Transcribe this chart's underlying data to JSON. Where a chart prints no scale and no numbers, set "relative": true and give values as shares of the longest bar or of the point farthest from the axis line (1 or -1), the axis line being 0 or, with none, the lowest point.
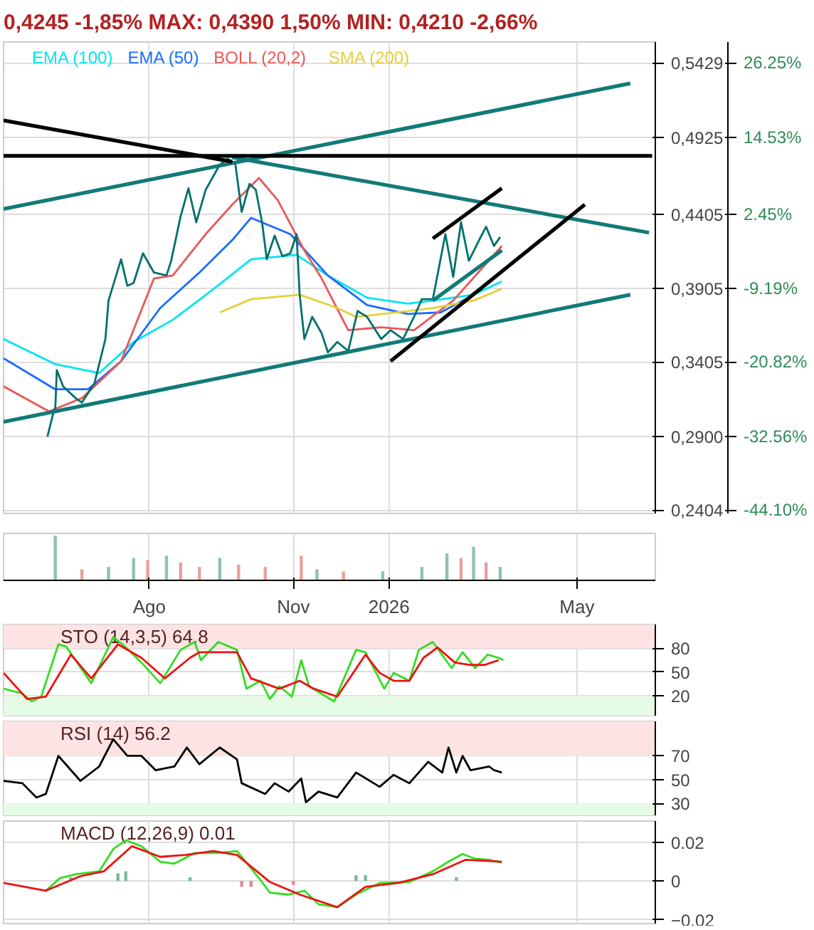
{
  "chart_data": [
    {
      "type": "line",
      "title": "0,4245 -1,85%  MAX: 0,4390 1,50%  MIN: 0,4210 -2,66%",
      "xlim": [
        "2025-04-30",
        "2026-06-20"
      ],
      "xticks": [
        {
          "value": "2025-08-01",
          "label": null
        },
        {
          "value": "2025-11-01",
          "label": null
        },
        {
          "value": "2026-01-01",
          "label": null
        },
        {
          "value": "2026-05-01",
          "label": null
        }
      ],
      "ylim": [
        0.238,
        0.557
      ],
      "yticks": [
        {
          "value": 0.5429,
          "label": "0,5429"
        },
        {
          "value": 0.4925,
          "label": "0,4925"
        },
        {
          "value": 0.4405,
          "label": "0,4405"
        },
        {
          "value": 0.3905,
          "label": "0,3905"
        },
        {
          "value": 0.3405,
          "label": "0,3405"
        },
        {
          "value": 0.29,
          "label": "0,2900"
        },
        {
          "value": 0.2404,
          "label": "0,2404"
        }
      ],
      "y2lim": [
        -44.65,
        29.53
      ],
      "y2ticks": [
        {
          "value": 26.25,
          "label": "26.25%"
        },
        {
          "value": 14.53,
          "label": "14.53%"
        },
        {
          "value": 2.45,
          "label": "2.45%"
        },
        {
          "value": -9.19,
          "label": "-9.19%"
        },
        {
          "value": -20.82,
          "label": "-20.82%"
        },
        {
          "value": -32.56,
          "label": "-32.56%"
        },
        {
          "value": -44.1,
          "label": "-44.10%"
        }
      ],
      "tick_labels": "y",
      "grid": true,
      "legend": "top left",
      "series": [
        {
          "name": "EMA (100)",
          "color": "#00e5ee",
          "x": [
            "2025-04-30",
            "2025-06-02",
            "2025-06-30",
            "2025-07-22",
            "2025-08-16",
            "2025-09-10",
            "2025-10-05",
            "2025-11-03",
            "2025-11-23",
            "2025-12-18",
            "2026-01-13",
            "2026-01-29",
            "2026-02-24",
            "2026-03-14"
          ],
          "values": [
            0.356,
            0.339,
            0.333,
            0.354,
            0.369,
            0.389,
            0.41,
            0.413,
            0.399,
            0.384,
            0.38,
            0.382,
            0.386,
            0.395
          ]
        },
        {
          "name": "EMA (50)",
          "color": "#1a6bff",
          "x": [
            "2025-04-30",
            "2025-06-02",
            "2025-06-23",
            "2025-07-14",
            "2025-08-08",
            "2025-09-02",
            "2025-09-23",
            "2025-10-05",
            "2025-10-30",
            "2025-11-23",
            "2025-12-18",
            "2026-01-13",
            "2026-02-03",
            "2026-02-24",
            "2026-03-14"
          ],
          "values": [
            0.343,
            0.322,
            0.322,
            0.341,
            0.377,
            0.401,
            0.423,
            0.438,
            0.427,
            0.399,
            0.379,
            0.373,
            0.374,
            0.386,
            0.401
          ]
        },
        {
          "name": "BOLL (20,2)",
          "color": "#e85858",
          "x": [
            "2025-04-30",
            "2025-05-29",
            "2025-06-19",
            "2025-07-14",
            "2025-08-04",
            "2025-08-16",
            "2025-09-06",
            "2025-09-23",
            "2025-10-10",
            "2025-10-22",
            "2025-11-08",
            "2025-11-19",
            "2025-12-06",
            "2025-12-27",
            "2026-01-17",
            "2026-02-11",
            "2026-03-04",
            "2026-03-14"
          ],
          "values": [
            0.324,
            0.307,
            0.316,
            0.341,
            0.397,
            0.399,
            0.427,
            0.447,
            0.465,
            0.45,
            0.416,
            0.397,
            0.362,
            0.364,
            0.362,
            0.382,
            0.407,
            0.419
          ]
        },
        {
          "name": "SMA (200)",
          "color": "#e6cf3a",
          "x": [
            "2025-09-15",
            "2025-10-05",
            "2025-11-05",
            "2025-11-29",
            "2025-12-11",
            "2026-01-05",
            "2026-01-29",
            "2026-02-24",
            "2026-03-14"
          ],
          "values": [
            0.374,
            0.383,
            0.386,
            0.377,
            0.371,
            0.374,
            0.377,
            0.382,
            0.39
          ]
        },
        {
          "color": "#00706b",
          "x": [
            "2025-05-28",
            "2025-06-01",
            "2025-06-02",
            "2025-06-03",
            "2025-06-07",
            "2025-06-15",
            "2025-06-19",
            "2025-06-27",
            "2025-07-04",
            "2025-07-06",
            "2025-07-14",
            "2025-07-18",
            "2025-07-22",
            "2025-07-28",
            "2025-08-04",
            "2025-08-12",
            "2025-08-15",
            "2025-08-21",
            "2025-08-26",
            "2025-08-31",
            "2025-09-06",
            "2025-09-15",
            "2025-09-20",
            "2025-09-25",
            "2025-09-29",
            "2025-10-04",
            "2025-10-08",
            "2025-10-12",
            "2025-10-15",
            "2025-10-20",
            "2025-10-25",
            "2025-10-30",
            "2025-11-03",
            "2025-11-05",
            "2025-11-08",
            "2025-11-13",
            "2025-11-19",
            "2025-11-23",
            "2025-11-29",
            "2025-12-06",
            "2025-12-12",
            "2025-12-18",
            "2025-12-27",
            "2026-01-02",
            "2026-01-10",
            "2026-01-17",
            "2026-01-22",
            "2026-01-29",
            "2026-02-06",
            "2026-02-11",
            "2026-02-16",
            "2026-02-21",
            "2026-02-28",
            "2026-03-04",
            "2026-03-09",
            "2026-03-13"
          ],
          "values": [
            0.29,
            0.307,
            0.309,
            0.335,
            0.324,
            0.316,
            0.313,
            0.326,
            0.356,
            0.382,
            0.41,
            0.392,
            0.394,
            0.414,
            0.401,
            0.399,
            0.409,
            0.439,
            0.458,
            0.435,
            0.457,
            0.474,
            0.478,
            0.474,
            0.442,
            0.461,
            0.457,
            0.435,
            0.41,
            0.426,
            0.412,
            0.414,
            0.427,
            0.386,
            0.356,
            0.371,
            0.36,
            0.347,
            0.354,
            0.348,
            0.375,
            0.371,
            0.356,
            0.362,
            0.356,
            0.371,
            0.383,
            0.383,
            0.427,
            0.398,
            0.435,
            0.409,
            0.424,
            0.432,
            0.419,
            0.425
          ]
        },
        {
          "color": "#127a78",
          "x": [
            "2025-04-30",
            "2026-06-04"
          ],
          "values": [
            0.3,
            0.386
          ]
        },
        {
          "color": "#127a78",
          "x": [
            "2025-04-30",
            "2026-06-04"
          ],
          "values": [
            0.444,
            0.529
          ]
        },
        {
          "color": "#127a78",
          "x": [
            "2025-09-23",
            "2026-06-16"
          ],
          "values": [
            0.479,
            0.428
          ]
        },
        {
          "color": "#000000",
          "x": [
            "2025-04-30",
            "2025-09-23"
          ],
          "values": [
            0.504,
            0.476
          ]
        },
        {
          "color": "#000000",
          "x": [
            "2025-04-30",
            "2026-06-18"
          ],
          "values": [
            0.48,
            0.48
          ]
        },
        {
          "color": "#000000",
          "x": [
            "2026-01-29",
            "2026-03-14"
          ],
          "values": [
            0.424,
            0.458
          ]
        },
        {
          "color": "#127a78",
          "x": [
            "2026-01-29",
            "2026-03-14"
          ],
          "values": [
            0.382,
            0.416
          ]
        },
        {
          "color": "#000000",
          "x": [
            "2026-01-02",
            "2026-05-06"
          ],
          "values": [
            0.341,
            0.447
          ]
        }
      ]
    },
    {
      "type": "bar",
      "relative": true,
      "xlim": [
        "2025-04-30",
        "2026-06-20"
      ],
      "xticks": [
        {
          "value": "2025-08-01",
          "label": "Ago"
        },
        {
          "value": "2025-11-01",
          "label": "Nov"
        },
        {
          "value": "2026-01-01",
          "label": "2026"
        },
        {
          "value": "2026-05-01",
          "label": "May"
        }
      ],
      "tick_labels": "x",
      "grid": "x",
      "x": [
        "2025-06-02",
        "2025-06-19",
        "2025-07-06",
        "2025-07-22",
        "2025-07-31",
        "2025-08-12",
        "2025-08-21",
        "2025-09-02",
        "2025-09-15",
        "2025-09-27",
        "2025-10-14",
        "2025-11-06",
        "2025-11-16",
        "2025-12-03",
        "2025-12-28",
        "2026-01-22",
        "2026-02-07",
        "2026-02-16",
        "2026-02-24",
        "2026-03-04",
        "2026-03-13"
      ],
      "values": [
        1.0,
        0.25,
        0.3,
        0.5,
        0.45,
        0.55,
        0.4,
        0.3,
        0.5,
        0.35,
        0.3,
        0.55,
        0.25,
        0.2,
        0.2,
        0.3,
        0.6,
        0.5,
        0.75,
        0.4,
        0.3
      ],
      "colors": [
        "#8fc4a8",
        "#e8a0a0",
        "#8fc4a8",
        "#8fc4a8",
        "#e8a0a0",
        "#8fc4a8",
        "#e8a0a0",
        "#e8a0a0",
        "#8fc4a8",
        "#e8a0a0",
        "#e8a0a0",
        "#e8a0a0",
        "#8fc4a8",
        "#e8a0a0",
        "#8fc4a8",
        "#8fc4a8",
        "#8fc4a8",
        "#e8a0a0",
        "#8fc4a8",
        "#e8a0a0",
        "#8fc4a8"
      ]
    },
    {
      "type": "line",
      "title": "STO (14,3,5) 64.8",
      "xlim": [
        "2025-04-30",
        "2026-06-20"
      ],
      "xticks": [
        {
          "value": "2025-08-01",
          "label": null
        },
        {
          "value": "2025-11-01",
          "label": null
        },
        {
          "value": "2026-01-01",
          "label": null
        },
        {
          "value": "2026-05-01",
          "label": null
        }
      ],
      "ylim": [
        -5,
        110
      ],
      "yticks": [
        80,
        50,
        20
      ],
      "tick_labels": "y",
      "grid": true,
      "bands": [
        {
          "axis": "y",
          "from": 80,
          "to": 110,
          "color": "#fde3e3"
        },
        {
          "axis": "y",
          "from": -5,
          "to": 20,
          "color": "#e6fbe6"
        }
      ],
      "series": [
        {
          "color": "#33dd22",
          "x": [
            "2025-04-30",
            "2025-05-12",
            "2025-05-18",
            "2025-05-24",
            "2025-06-04",
            "2025-06-09",
            "2025-06-25",
            "2025-07-09",
            "2025-07-15",
            "2025-07-27",
            "2025-08-08",
            "2025-08-21",
            "2025-08-30",
            "2025-09-03",
            "2025-09-14",
            "2025-09-26",
            "2025-10-02",
            "2025-10-11",
            "2025-10-17",
            "2025-10-23",
            "2025-10-31",
            "2025-11-06",
            "2025-11-11",
            "2025-11-27",
            "2025-12-11",
            "2025-12-17",
            "2025-12-29",
            "2026-01-04",
            "2026-01-14",
            "2026-01-20",
            "2026-01-29",
            "2026-02-10",
            "2026-02-17",
            "2026-02-25",
            "2026-03-05",
            "2026-03-12",
            "2026-03-15"
          ],
          "values": [
            29,
            23,
            13,
            19,
            85,
            82,
            36,
            94,
            85,
            62,
            36,
            78,
            88,
            65,
            88,
            78,
            29,
            39,
            16,
            32,
            19,
            65,
            32,
            13,
            78,
            75,
            29,
            49,
            39,
            78,
            88,
            55,
            75,
            55,
            72,
            68,
            65
          ]
        },
        {
          "color": "#ee1111",
          "x": [
            "2025-04-30",
            "2025-05-15",
            "2025-05-27",
            "2025-06-12",
            "2025-06-25",
            "2025-07-12",
            "2025-07-27",
            "2025-08-11",
            "2025-08-27",
            "2025-09-02",
            "2025-09-26",
            "2025-10-05",
            "2025-10-23",
            "2025-11-05",
            "2025-11-14",
            "2025-11-29",
            "2025-12-17",
            "2025-12-26",
            "2026-01-04",
            "2026-01-14",
            "2026-01-23",
            "2026-02-01",
            "2026-02-12",
            "2026-02-22",
            "2026-03-03",
            "2026-03-12"
          ],
          "values": [
            49,
            16,
            19,
            72,
            42,
            85,
            68,
            42,
            68,
            75,
            75,
            42,
            29,
            39,
            29,
            19,
            72,
            49,
            39,
            39,
            68,
            81,
            62,
            59,
            59,
            65
          ]
        }
      ]
    },
    {
      "type": "line",
      "title": "RSI (14) 56.2",
      "xlim": [
        "2025-04-30",
        "2026-06-20"
      ],
      "xticks": [
        {
          "value": "2025-08-01",
          "label": null
        },
        {
          "value": "2025-11-01",
          "label": null
        },
        {
          "value": "2026-01-01",
          "label": null
        },
        {
          "value": "2026-05-01",
          "label": null
        }
      ],
      "ylim": [
        20,
        99
      ],
      "yticks": [
        70,
        50,
        30
      ],
      "tick_labels": "y",
      "grid": true,
      "bands": [
        {
          "axis": "y",
          "from": 70,
          "to": 99,
          "color": "#fde3e3"
        },
        {
          "axis": "y",
          "from": 20,
          "to": 30,
          "color": "#e6fbe6"
        }
      ],
      "series": [
        {
          "color": "#000000",
          "x": [
            "2025-04-30",
            "2025-05-12",
            "2025-05-21",
            "2025-05-27",
            "2025-06-04",
            "2025-06-18",
            "2025-06-30",
            "2025-07-09",
            "2025-07-18",
            "2025-07-27",
            "2025-08-05",
            "2025-08-17",
            "2025-08-25",
            "2025-09-02",
            "2025-09-15",
            "2025-09-26",
            "2025-09-29",
            "2025-10-14",
            "2025-10-20",
            "2025-10-29",
            "2025-11-06",
            "2025-11-09",
            "2025-11-17",
            "2025-11-29",
            "2025-12-11",
            "2025-12-26",
            "2026-01-04",
            "2026-01-14",
            "2026-01-26",
            "2026-02-04",
            "2026-02-08",
            "2026-02-13",
            "2026-02-17",
            "2026-02-22",
            "2026-03-06",
            "2026-03-09",
            "2026-03-14"
          ],
          "values": [
            49,
            47,
            35,
            38,
            70,
            49,
            61,
            84,
            70,
            70,
            58,
            61,
            77,
            63,
            77,
            67,
            47,
            38,
            47,
            40,
            51,
            31,
            40,
            35,
            56,
            44,
            54,
            47,
            65,
            56,
            77,
            56,
            70,
            58,
            61,
            58,
            56
          ]
        }
      ]
    },
    {
      "type": "line",
      "title": "MACD (12,26,9) 0.01",
      "xlim": [
        "2025-04-30",
        "2026-06-20"
      ],
      "xticks": [
        {
          "value": "2025-08-01",
          "label": null
        },
        {
          "value": "2025-11-01",
          "label": null
        },
        {
          "value": "2026-01-01",
          "label": null
        },
        {
          "value": "2026-05-01",
          "label": null
        }
      ],
      "ylim": [
        -0.022,
        0.031
      ],
      "yticks": [
        0.02,
        0,
        -0.02
      ],
      "tick_labels": "y",
      "grid": true,
      "series": [
        {
          "type": "bar",
          "x": [
            "2025-06-12",
            "2025-07-12",
            "2025-07-17",
            "2025-08-27",
            "2025-09-29",
            "2025-10-05",
            "2025-11-01",
            "2025-12-11",
            "2025-12-17",
            "2026-02-13"
          ],
          "values": [
            0.002,
            0.004,
            0.005,
            0.002,
            -0.003,
            -0.003,
            -0.002,
            0.003,
            0.003,
            0.002
          ],
          "colors": [
            "#7fb89a",
            "#7fb89a",
            "#7fb89a",
            "#7fb89a",
            "#e08a8a",
            "#e08a8a",
            "#e08a8a",
            "#7fb89a",
            "#7fb89a",
            "#7fb89a"
          ]
        },
        {
          "color": "#33dd22",
          "x": [
            "2025-05-27",
            "2025-06-05",
            "2025-06-15",
            "2025-06-30",
            "2025-07-09",
            "2025-07-17",
            "2025-07-27",
            "2025-08-08",
            "2025-08-17",
            "2025-08-30",
            "2025-09-14",
            "2025-09-26",
            "2025-10-11",
            "2025-10-17",
            "2025-10-29",
            "2025-11-08",
            "2025-11-17",
            "2025-11-29",
            "2025-12-11",
            "2025-12-26",
            "2026-01-14",
            "2026-01-29",
            "2026-02-08",
            "2026-02-17",
            "2026-02-25",
            "2026-03-06",
            "2026-03-14"
          ],
          "values": [
            -0.005,
            0.0015,
            0.0035,
            0.005,
            0.0165,
            0.021,
            0.018,
            0.01,
            0.009,
            0.0145,
            0.0145,
            0.0155,
            0.0005,
            -0.006,
            -0.007,
            -0.005,
            -0.012,
            -0.0135,
            -0.007,
            -0.001,
            -0.0005,
            0.005,
            0.01,
            0.014,
            0.0115,
            0.011,
            0.0095
          ]
        },
        {
          "color": "#ee1111",
          "x": [
            "2025-04-30",
            "2025-05-27",
            "2025-06-18",
            "2025-07-03",
            "2025-07-21",
            "2025-08-08",
            "2025-08-24",
            "2025-09-11",
            "2025-09-26",
            "2025-10-17",
            "2025-11-05",
            "2025-11-29",
            "2025-12-17",
            "2026-01-07",
            "2026-01-29",
            "2026-02-19",
            "2026-03-14"
          ],
          "values": [
            -0.001,
            -0.005,
            0.0025,
            0.005,
            0.018,
            0.0125,
            0.0135,
            0.0155,
            0.0135,
            -0.0005,
            -0.007,
            -0.0135,
            -0.003,
            -0.001,
            0.0035,
            0.011,
            0.01
          ]
        }
      ]
    }
  ]
}
